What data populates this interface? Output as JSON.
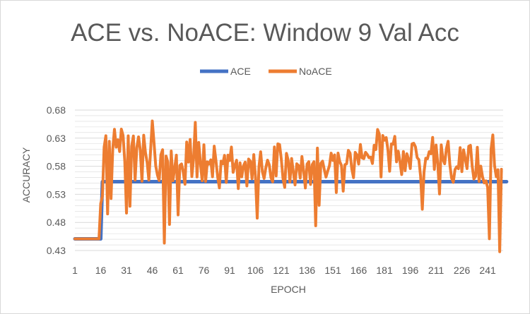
{
  "chart_data": {
    "type": "line",
    "title": "ACE vs. NoACE: Window 9 Val Acc",
    "xlabel": "EPOCH",
    "ylabel": "ACCURACY",
    "ylim": [
      0.43,
      0.68
    ],
    "xlim": [
      1,
      250
    ],
    "y_ticks": [
      "0.43",
      "0.48",
      "0.53",
      "0.58",
      "0.63",
      "0.68"
    ],
    "y_tick_values": [
      0.43,
      0.48,
      0.53,
      0.58,
      0.63,
      0.68
    ],
    "x_ticks": [
      "1",
      "16",
      "31",
      "46",
      "61",
      "76",
      "91",
      "106",
      "121",
      "136",
      "151",
      "166",
      "181",
      "196",
      "211",
      "226",
      "241"
    ],
    "x_tick_values": [
      1,
      16,
      31,
      46,
      61,
      76,
      91,
      106,
      121,
      136,
      151,
      166,
      181,
      196,
      211,
      226,
      241
    ],
    "grid": true,
    "legend_position": "top",
    "colors": {
      "ACE": "#4472c4",
      "NoACE": "#ed7d31",
      "grid": "#d9d9d9",
      "text": "#595959"
    },
    "series": [
      {
        "name": "ACE",
        "x_start": 1,
        "values": [
          0.4507,
          0.4507,
          0.4507,
          0.4507,
          0.4507,
          0.4507,
          0.4507,
          0.4507,
          0.4507,
          0.4507,
          0.4507,
          0.4507,
          0.4507,
          0.4507,
          0.4507,
          0.4507,
          0.5525,
          0.5525,
          0.5525,
          0.5525,
          0.5525,
          0.5525,
          0.5525,
          0.5525,
          0.5525,
          0.5525,
          0.5525,
          0.5525,
          0.5525,
          0.5525,
          0.5525,
          0.5525,
          0.5525,
          0.5525,
          0.5525,
          0.5525,
          0.5525,
          0.5525,
          0.5525,
          0.5525,
          0.5525,
          0.5525,
          0.5525,
          0.5525,
          0.5525,
          0.5525,
          0.5525,
          0.5525,
          0.5525,
          0.5525,
          0.5525,
          0.5525,
          0.5525,
          0.5525,
          0.5525,
          0.5525,
          0.5525,
          0.5525,
          0.5525,
          0.5525,
          0.5525,
          0.5525,
          0.5525,
          0.5525,
          0.5525,
          0.5525,
          0.5525,
          0.5525,
          0.5525,
          0.5525,
          0.5525,
          0.5525,
          0.5525,
          0.5525,
          0.5525,
          0.5525,
          0.5525,
          0.5525,
          0.5525,
          0.5525,
          0.5525,
          0.5525,
          0.5525,
          0.5525,
          0.5525,
          0.5525,
          0.5525,
          0.5525,
          0.5525,
          0.5525,
          0.5525,
          0.5525,
          0.5525,
          0.5525,
          0.5525,
          0.5525,
          0.5525,
          0.5525,
          0.5525,
          0.5525,
          0.5525,
          0.5525,
          0.5525,
          0.5525,
          0.5525,
          0.5525,
          0.5525,
          0.5525,
          0.5525,
          0.5525,
          0.5525,
          0.5525,
          0.5525,
          0.5525,
          0.5525,
          0.5525,
          0.5525,
          0.5525,
          0.5525,
          0.5525,
          0.5525,
          0.5525,
          0.5525,
          0.5525,
          0.5525,
          0.5525,
          0.5525,
          0.5525,
          0.5525,
          0.5525,
          0.5525,
          0.5525,
          0.5525,
          0.5525,
          0.5525,
          0.5525,
          0.5525,
          0.5525,
          0.5525,
          0.5525,
          0.5525,
          0.5525,
          0.5525,
          0.5525,
          0.5525,
          0.5525,
          0.5525,
          0.5525,
          0.5525,
          0.5525,
          0.5525,
          0.5525,
          0.5525,
          0.5525,
          0.5525,
          0.5525,
          0.5525,
          0.5525,
          0.5525,
          0.5525,
          0.5525,
          0.5525,
          0.5525,
          0.5525,
          0.5525,
          0.5525,
          0.5525,
          0.5525,
          0.5525,
          0.5525,
          0.5525,
          0.5525,
          0.5525,
          0.5525,
          0.5525,
          0.5525,
          0.5525,
          0.5525,
          0.5525,
          0.5525,
          0.5525,
          0.5525,
          0.5525,
          0.5525,
          0.5525,
          0.5525,
          0.5525,
          0.5525,
          0.5525,
          0.5525,
          0.5525,
          0.5525,
          0.5525,
          0.5525,
          0.5525,
          0.5525,
          0.5525,
          0.5525,
          0.5525,
          0.5525,
          0.5525,
          0.5525,
          0.5525,
          0.5525,
          0.5525,
          0.5525,
          0.5525,
          0.5525,
          0.5525,
          0.5525,
          0.5525,
          0.5525,
          0.5525,
          0.5525,
          0.5525,
          0.5525,
          0.5525,
          0.5525,
          0.5525,
          0.5525,
          0.5525,
          0.5525,
          0.5525,
          0.5525,
          0.5525,
          0.5525,
          0.5525,
          0.5525,
          0.5525,
          0.5525,
          0.5525,
          0.5525,
          0.5525,
          0.5525,
          0.5525,
          0.5525,
          0.5525,
          0.5525,
          0.5525,
          0.5525,
          0.5525,
          0.5525,
          0.5525,
          0.5525,
          0.5525,
          0.5525,
          0.5525,
          0.5525,
          0.5525,
          0.5525,
          0.5525,
          0.5525
        ]
      },
      {
        "name": "NoACE",
        "x_start": 1,
        "values": [
          0.4507,
          0.4507,
          0.4507,
          0.4507,
          0.4507,
          0.4507,
          0.4507,
          0.4507,
          0.4507,
          0.4507,
          0.4507,
          0.4507,
          0.4507,
          0.4507,
          0.4507,
          0.5133,
          0.5266,
          0.6141,
          0.6343,
          0.4951,
          0.6244,
          0.5225,
          0.6102,
          0.6457,
          0.6139,
          0.6271,
          0.6062,
          0.6461,
          0.6349,
          0.5891,
          0.4966,
          0.6342,
          0.5088,
          0.6156,
          0.6338,
          0.5554,
          0.6131,
          0.6323,
          0.6088,
          0.5532,
          0.6352,
          0.6047,
          0.5867,
          0.5553,
          0.6078,
          0.6606,
          0.6219,
          0.5804,
          0.5642,
          0.5545,
          0.6004,
          0.6095,
          0.4432,
          0.5982,
          0.5878,
          0.4764,
          0.6072,
          0.5542,
          0.5762,
          0.5997,
          0.4934,
          0.5815,
          0.5841,
          0.5691,
          0.5479,
          0.6232,
          0.5874,
          0.6277,
          0.5616,
          0.5937,
          0.6582,
          0.5609,
          0.6224,
          0.5849,
          0.5542,
          0.6183,
          0.5528,
          0.5879,
          0.5838,
          0.5914,
          0.5613,
          0.6157,
          0.5901,
          0.5614,
          0.5415,
          0.5891,
          0.5843,
          0.5994,
          0.5513,
          0.5998,
          0.5901,
          0.6142,
          0.5691,
          0.5816,
          0.5907,
          0.5402,
          0.5861,
          0.5611,
          0.5805,
          0.5874,
          0.5449,
          0.5928,
          0.5891,
          0.5577,
          0.6007,
          0.5606,
          0.4876,
          0.5784,
          0.6057,
          0.5705,
          0.5582,
          0.5773,
          0.5908,
          0.5826,
          0.5597,
          0.5522,
          0.6144,
          0.5629,
          0.6198,
          0.6188,
          0.5929,
          0.5582,
          0.5424,
          0.6029,
          0.5907,
          0.5518,
          0.5938,
          0.5702,
          0.5468,
          0.5843,
          0.5813,
          0.5589,
          0.5972,
          0.5718,
          0.5413,
          0.5838,
          0.5881,
          0.5476,
          0.5828,
          0.5882,
          0.4741,
          0.6123,
          0.5105,
          0.5853,
          0.5891,
          0.5741,
          0.5608,
          0.5715,
          0.5811,
          0.6033,
          0.5902,
          0.6002,
          0.5332,
          0.6034,
          0.5883,
          0.5813,
          0.5357,
          0.5828,
          0.5844,
          0.6083,
          0.6032,
          0.5751,
          0.5597,
          0.6047,
          0.6001,
          0.5839,
          0.6187,
          0.5948,
          0.5935,
          0.6048,
          0.6009,
          0.5952,
          0.5963,
          0.5849,
          0.6174,
          0.6097,
          0.6454,
          0.6372,
          0.5609,
          0.6348,
          0.6263,
          0.6311,
          0.6092,
          0.5711,
          0.6197,
          0.6193,
          0.6331,
          0.5878,
          0.6069,
          0.5883,
          0.5652,
          0.6062,
          0.5721,
          0.6023,
          0.5926,
          0.5759,
          0.6197,
          0.6209,
          0.6147,
          0.5954,
          0.5917,
          0.5621,
          0.5034,
          0.5698,
          0.5943,
          0.5934,
          0.6059,
          0.6023,
          0.6313,
          0.5743,
          0.6178,
          0.5842,
          0.5306,
          0.6182,
          0.5924,
          0.5844,
          0.6113,
          0.6244,
          0.5832,
          0.5592,
          0.5513,
          0.5741,
          0.5791,
          0.5756,
          0.6131,
          0.5704,
          0.6092,
          0.5929,
          0.5758,
          0.6156,
          0.6172,
          0.5802,
          0.5572,
          0.5623,
          0.6138,
          0.5528,
          0.5802,
          0.5612,
          0.5504,
          0.5539,
          0.5421,
          0.4509,
          0.6108,
          0.6357,
          0.5811,
          0.5613,
          0.5738,
          0.4278,
          0.5747
        ]
      }
    ]
  }
}
